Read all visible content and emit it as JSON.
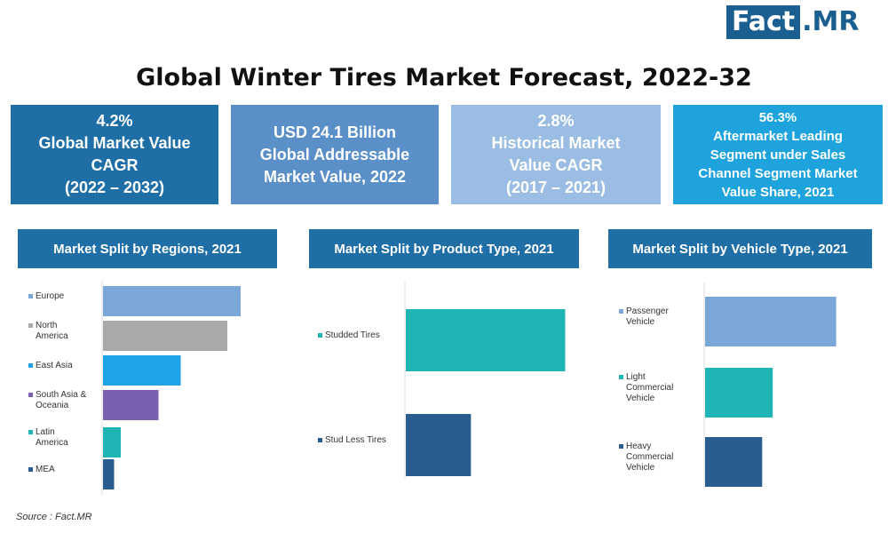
{
  "logo": {
    "part1": "Fact",
    "part2": ".MR"
  },
  "title": "Global Winter Tires Market Forecast, 2022-32",
  "kpis": [
    {
      "lines": [
        "4.2%",
        "Global Market Value",
        "CAGR",
        "(2022 – 2032)"
      ],
      "color": "#1f6fa6"
    },
    {
      "lines": [
        "USD 24.1 Billion",
        "Global Addressable",
        "Market Value, 2022"
      ],
      "color": "#5b8fc8"
    },
    {
      "lines": [
        "2.8%",
        "Historical Market",
        "Value CAGR",
        "(2017 – 2021)"
      ],
      "color": "#9bbde3"
    },
    {
      "lines": [
        "56.3%",
        "Aftermarket Leading",
        "Segment under Sales",
        "Channel Segment Market",
        "Value Share, 2021"
      ],
      "color": "#1ea3dd"
    }
  ],
  "chart_data": [
    {
      "type": "bar",
      "orientation": "horizontal",
      "title": "Market Split by Regions, 2021",
      "categories": [
        [
          "Europe"
        ],
        [
          "North",
          "America"
        ],
        [
          "East Asia"
        ],
        [
          "South Asia &",
          "Oceania"
        ],
        [
          "Latin",
          "America"
        ],
        [
          "MEA"
        ]
      ],
      "values": [
        31,
        28,
        17.5,
        12.5,
        4,
        2.5
      ],
      "colors": [
        "#7aa6d8",
        "#a9a9a9",
        "#1ea3e8",
        "#7b5fb0",
        "#20b5b5",
        "#2a5d8f"
      ],
      "xlim": [
        0,
        32
      ],
      "grid": false,
      "legend": "left"
    },
    {
      "type": "bar",
      "orientation": "horizontal",
      "title": "Market Split by Product Type, 2021",
      "categories": [
        [
          "Studded Tires"
        ],
        [
          "Stud Less Tires"
        ]
      ],
      "values": [
        71,
        29
      ],
      "colors": [
        "#20b5b5",
        "#2a5d8f"
      ],
      "xlim": [
        0,
        72
      ],
      "grid": false,
      "legend": "left"
    },
    {
      "type": "bar",
      "orientation": "horizontal",
      "title": "Market Split by Vehicle Type, 2021",
      "categories": [
        [
          "Passenger",
          "Vehicle"
        ],
        [
          "Light",
          "Commercial",
          "Vehicle"
        ],
        [
          "Heavy",
          "Commercial",
          "Vehicle"
        ]
      ],
      "values": [
        62,
        32,
        27
      ],
      "colors": [
        "#7aa6d8",
        "#20b5b5",
        "#2a5d8f"
      ],
      "xlim": [
        0,
        63
      ],
      "grid": false,
      "legend": "left"
    }
  ],
  "source": "Source : Fact.MR"
}
